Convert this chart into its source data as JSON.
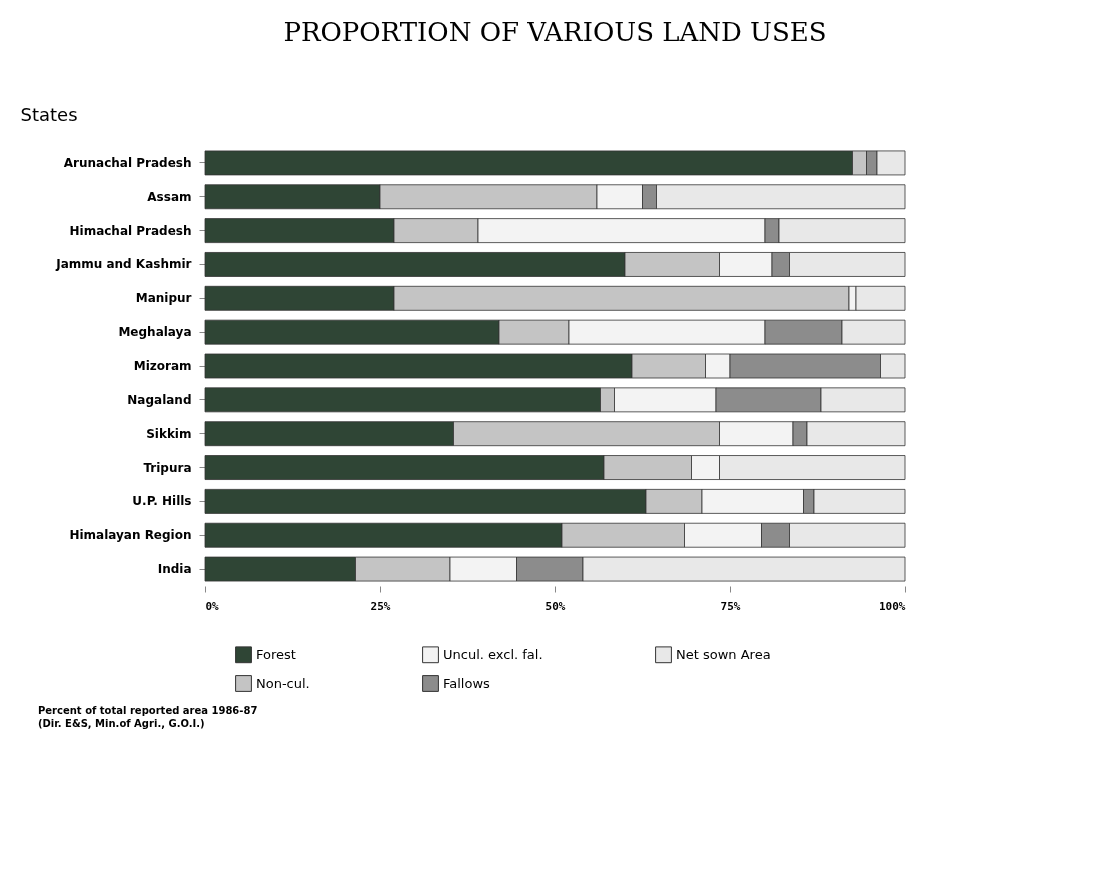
{
  "chart_data": {
    "type": "bar",
    "orientation": "horizontal",
    "stacked": true,
    "title": "PROPORTION OF VARIOUS LAND USES",
    "ylabel": "States",
    "categories": [
      "Arunachal Pradesh",
      "Assam",
      "Himachal Pradesh",
      "Jammu and Kashmir",
      "Manipur",
      "Meghalaya",
      "Mizoram",
      "Nagaland",
      "Sikkim",
      "Tripura",
      "U.P. Hills",
      "Himalayan Region",
      "India"
    ],
    "series": [
      {
        "name": "Forest",
        "color": "#2f4535",
        "values": [
          92.5,
          25,
          27,
          60,
          27,
          42,
          61,
          56.5,
          35.5,
          57,
          63,
          51,
          21.5
        ]
      },
      {
        "name": "Non-cul.",
        "color": "#c4c4c4",
        "values": [
          2,
          31,
          12,
          13.5,
          65,
          10,
          10.5,
          2,
          38,
          12.5,
          8,
          17.5,
          13.5
        ]
      },
      {
        "name": "Uncul. excl. fal.",
        "color": "#f3f3f3",
        "values": [
          null,
          6.5,
          41,
          7.5,
          1,
          28,
          3.5,
          14.5,
          10.5,
          4,
          14.5,
          11,
          9.5
        ]
      },
      {
        "name": "Fallows",
        "color": "#8c8c8c",
        "values": [
          1.5,
          2,
          2,
          2.5,
          null,
          11,
          21.5,
          15,
          2,
          null,
          1.5,
          4,
          9.5
        ]
      },
      {
        "name": "Net sown Area",
        "color": "#e8e8e8",
        "values": [
          4,
          35.5,
          18,
          16.5,
          7,
          9,
          3.5,
          12,
          14,
          26.5,
          13,
          16.5,
          46
        ]
      }
    ],
    "xlim": [
      0,
      100
    ],
    "xticks": [
      {
        "value": 0,
        "label": "0%"
      },
      {
        "value": 25,
        "label": "25%"
      },
      {
        "value": 50,
        "label": "50%"
      },
      {
        "value": 75,
        "label": "75%"
      },
      {
        "value": 100,
        "label": "100%"
      }
    ],
    "grid": false,
    "legend": "bottom",
    "annotations": [
      "Percent of total reported area 1986-87",
      "(Dir. E&S, Min.of Agri., G.O.I.)"
    ]
  }
}
